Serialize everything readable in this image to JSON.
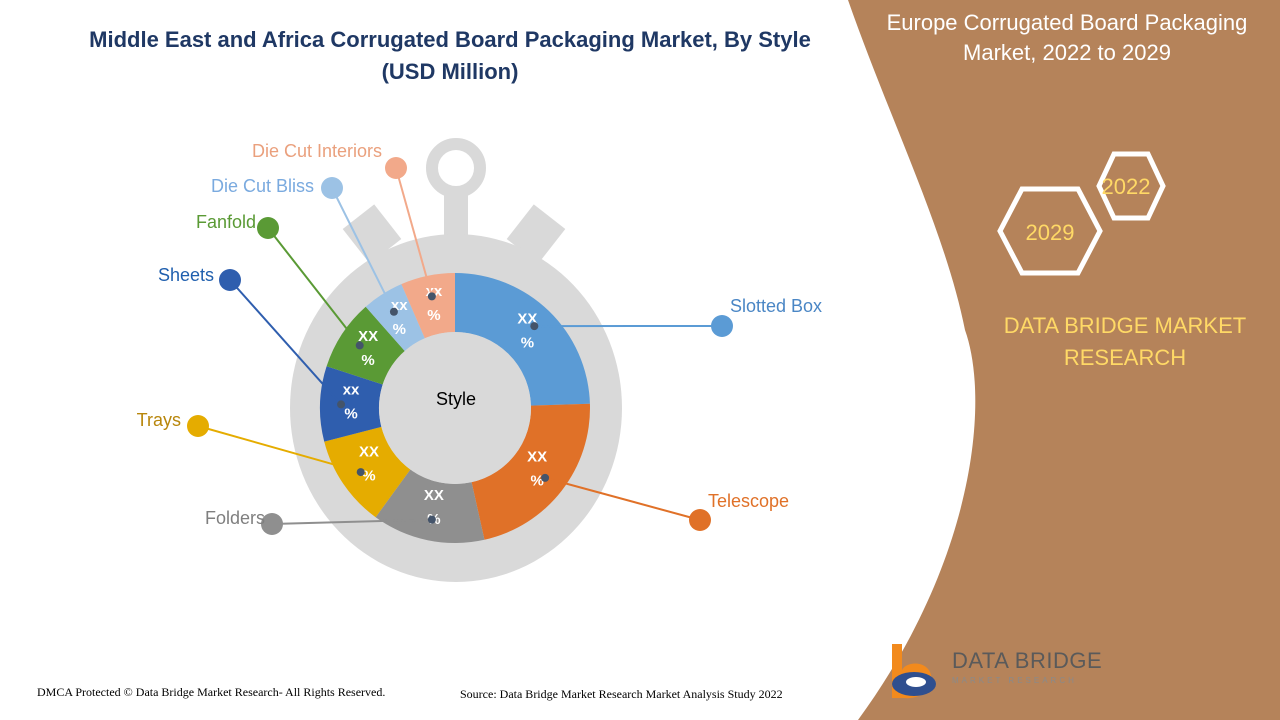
{
  "colors": {
    "panel": "#b5835a",
    "title": "#1f3864",
    "brand_yellow": "#ffd966",
    "stopwatch": "#d9d9d9"
  },
  "chart_data": {
    "type": "pie",
    "title": "Middle East and Africa Corrugated Board Packaging Market, By Style (USD Million)",
    "title_line1": "Middle East and Africa Corrugated Board Packaging Market, By Style",
    "title_line2": "(USD Million)",
    "center_label": "Style",
    "categories": [
      "Slotted Box",
      "Telescope",
      "Folders",
      "Trays",
      "Sheets",
      "Fanfold",
      "Die Cut Bliss",
      "Die Cut Interiors"
    ],
    "values": [
      24.5,
      22.0,
      13.5,
      11.0,
      9.0,
      8.5,
      5.0,
      6.5
    ],
    "value_labels": [
      "XX %",
      "XX %",
      "XX %",
      "XX %",
      "xx %",
      "XX %",
      "xx %",
      "xx %"
    ],
    "colors": [
      "#5b9bd5",
      "#e07128",
      "#8f8f8f",
      "#e5ac00",
      "#2f5eae",
      "#5a9a35",
      "#9cc2e5",
      "#f2a98a"
    ],
    "label_colors": [
      "#4a86c5",
      "#e07128",
      "#7f7f7f",
      "#b8860b",
      "#1f5fae",
      "#5a9a35",
      "#7aaadf",
      "#eaa07d"
    ],
    "value_unit": "%"
  },
  "right_panel": {
    "title": "Europe Corrugated Board Packaging Market, 2022 to 2029",
    "year_start": "2022",
    "year_end": "2029",
    "brand_line1": "DATA BRIDGE MARKET",
    "brand_line2": "RESEARCH"
  },
  "footer": {
    "copyright": "DMCA Protected © Data Bridge Market Research- All Rights Reserved.",
    "source": "Source: Data Bridge Market Research Market Analysis Study 2022"
  },
  "logo": {
    "name": "DATA BRIDGE",
    "tagline": "MARKET RESEARCH"
  }
}
